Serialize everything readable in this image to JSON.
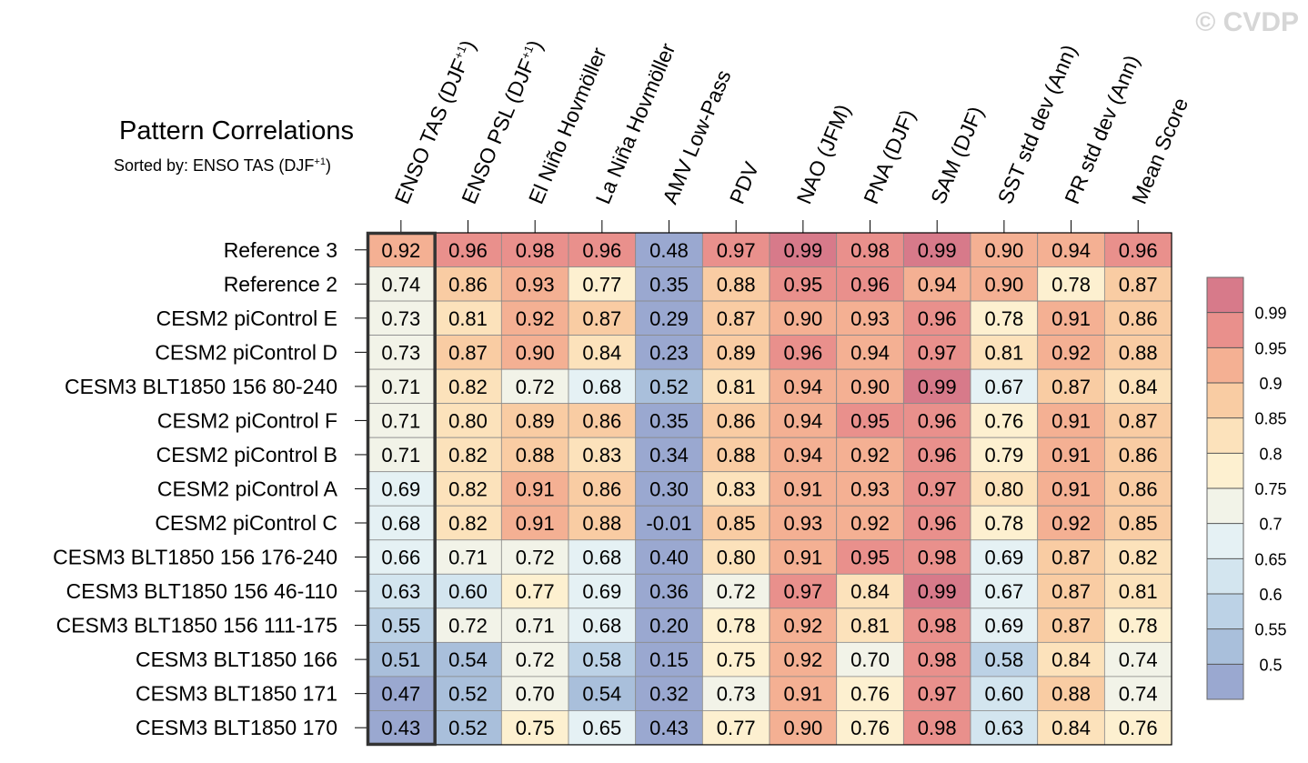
{
  "watermark": "© CVDP",
  "chart_data": {
    "type": "heatmap",
    "title": "Pattern Correlations",
    "subtitle": "Sorted by: ENSO TAS (DJF",
    "subtitle_sup": "+1",
    "subtitle_end": ")",
    "highlighted_column": "ENSO TAS (DJF+1)",
    "columns": [
      {
        "label": "ENSO TAS (DJF",
        "sup": "+1",
        "end": ")"
      },
      {
        "label": "ENSO PSL (DJF",
        "sup": "+1",
        "end": ")"
      },
      {
        "label": "El Niño Hovmöller"
      },
      {
        "label": "La Niña Hovmöller"
      },
      {
        "label": "AMV Low-Pass"
      },
      {
        "label": "PDV"
      },
      {
        "label": "NAO (JFM)"
      },
      {
        "label": "PNA (DJF)"
      },
      {
        "label": "SAM (DJF)"
      },
      {
        "label": "SST std dev (Ann)"
      },
      {
        "label": "PR std dev (Ann)"
      },
      {
        "label": "Mean Score"
      }
    ],
    "rows": [
      {
        "name": "Reference 3",
        "values": [
          "0.92",
          "0.96",
          "0.98",
          "0.96",
          "0.48",
          "0.97",
          "0.99",
          "0.98",
          "0.99",
          "0.90",
          "0.94",
          "0.96"
        ]
      },
      {
        "name": "Reference 2",
        "values": [
          "0.74",
          "0.86",
          "0.93",
          "0.77",
          "0.35",
          "0.88",
          "0.95",
          "0.96",
          "0.94",
          "0.90",
          "0.78",
          "0.87"
        ]
      },
      {
        "name": "CESM2 piControl E",
        "values": [
          "0.73",
          "0.81",
          "0.92",
          "0.87",
          "0.29",
          "0.87",
          "0.90",
          "0.93",
          "0.96",
          "0.78",
          "0.91",
          "0.86"
        ]
      },
      {
        "name": "CESM2 piControl D",
        "values": [
          "0.73",
          "0.87",
          "0.90",
          "0.84",
          "0.23",
          "0.89",
          "0.96",
          "0.94",
          "0.97",
          "0.81",
          "0.92",
          "0.88"
        ]
      },
      {
        "name": "CESM3 BLT1850 156 80-240",
        "values": [
          "0.71",
          "0.82",
          "0.72",
          "0.68",
          "0.52",
          "0.81",
          "0.94",
          "0.90",
          "0.99",
          "0.67",
          "0.87",
          "0.84"
        ]
      },
      {
        "name": "CESM2 piControl F",
        "values": [
          "0.71",
          "0.80",
          "0.89",
          "0.86",
          "0.35",
          "0.86",
          "0.94",
          "0.95",
          "0.96",
          "0.76",
          "0.91",
          "0.87"
        ]
      },
      {
        "name": "CESM2 piControl B",
        "values": [
          "0.71",
          "0.82",
          "0.88",
          "0.83",
          "0.34",
          "0.88",
          "0.94",
          "0.92",
          "0.96",
          "0.79",
          "0.91",
          "0.86"
        ]
      },
      {
        "name": "CESM2 piControl A",
        "values": [
          "0.69",
          "0.82",
          "0.91",
          "0.86",
          "0.30",
          "0.83",
          "0.91",
          "0.93",
          "0.97",
          "0.80",
          "0.91",
          "0.86"
        ]
      },
      {
        "name": "CESM2 piControl C",
        "values": [
          "0.68",
          "0.82",
          "0.91",
          "0.88",
          "-0.01",
          "0.85",
          "0.93",
          "0.92",
          "0.96",
          "0.78",
          "0.92",
          "0.85"
        ]
      },
      {
        "name": "CESM3 BLT1850 156 176-240",
        "values": [
          "0.66",
          "0.71",
          "0.72",
          "0.68",
          "0.40",
          "0.80",
          "0.91",
          "0.95",
          "0.98",
          "0.69",
          "0.87",
          "0.82"
        ]
      },
      {
        "name": "CESM3 BLT1850 156 46-110",
        "values": [
          "0.63",
          "0.60",
          "0.77",
          "0.69",
          "0.36",
          "0.72",
          "0.97",
          "0.84",
          "0.99",
          "0.67",
          "0.87",
          "0.81"
        ]
      },
      {
        "name": "CESM3 BLT1850 156 111-175",
        "values": [
          "0.55",
          "0.72",
          "0.71",
          "0.68",
          "0.20",
          "0.78",
          "0.92",
          "0.81",
          "0.98",
          "0.69",
          "0.87",
          "0.78"
        ]
      },
      {
        "name": "CESM3 BLT1850 166",
        "values": [
          "0.51",
          "0.54",
          "0.72",
          "0.58",
          "0.15",
          "0.75",
          "0.92",
          "0.70",
          "0.98",
          "0.58",
          "0.84",
          "0.74"
        ]
      },
      {
        "name": "CESM3 BLT1850 171",
        "values": [
          "0.47",
          "0.52",
          "0.70",
          "0.54",
          "0.32",
          "0.73",
          "0.91",
          "0.76",
          "0.97",
          "0.60",
          "0.88",
          "0.74"
        ]
      },
      {
        "name": "CESM3 BLT1850 170",
        "values": [
          "0.43",
          "0.52",
          "0.75",
          "0.65",
          "0.43",
          "0.77",
          "0.90",
          "0.76",
          "0.98",
          "0.63",
          "0.84",
          "0.76"
        ]
      }
    ],
    "colorbar": {
      "levels": [
        "0.5",
        "0.55",
        "0.6",
        "0.65",
        "0.7",
        "0.75",
        "0.8",
        "0.85",
        "0.9",
        "0.95",
        "0.99"
      ],
      "colors": [
        "#9aa8d0",
        "#a9bfdb",
        "#bcd2e6",
        "#d3e5ef",
        "#e5f1f4",
        "#f2f3e8",
        "#fdf0d0",
        "#fce2bb",
        "#f9cca3",
        "#f4b093",
        "#e9908c",
        "#d77a8a"
      ]
    }
  }
}
